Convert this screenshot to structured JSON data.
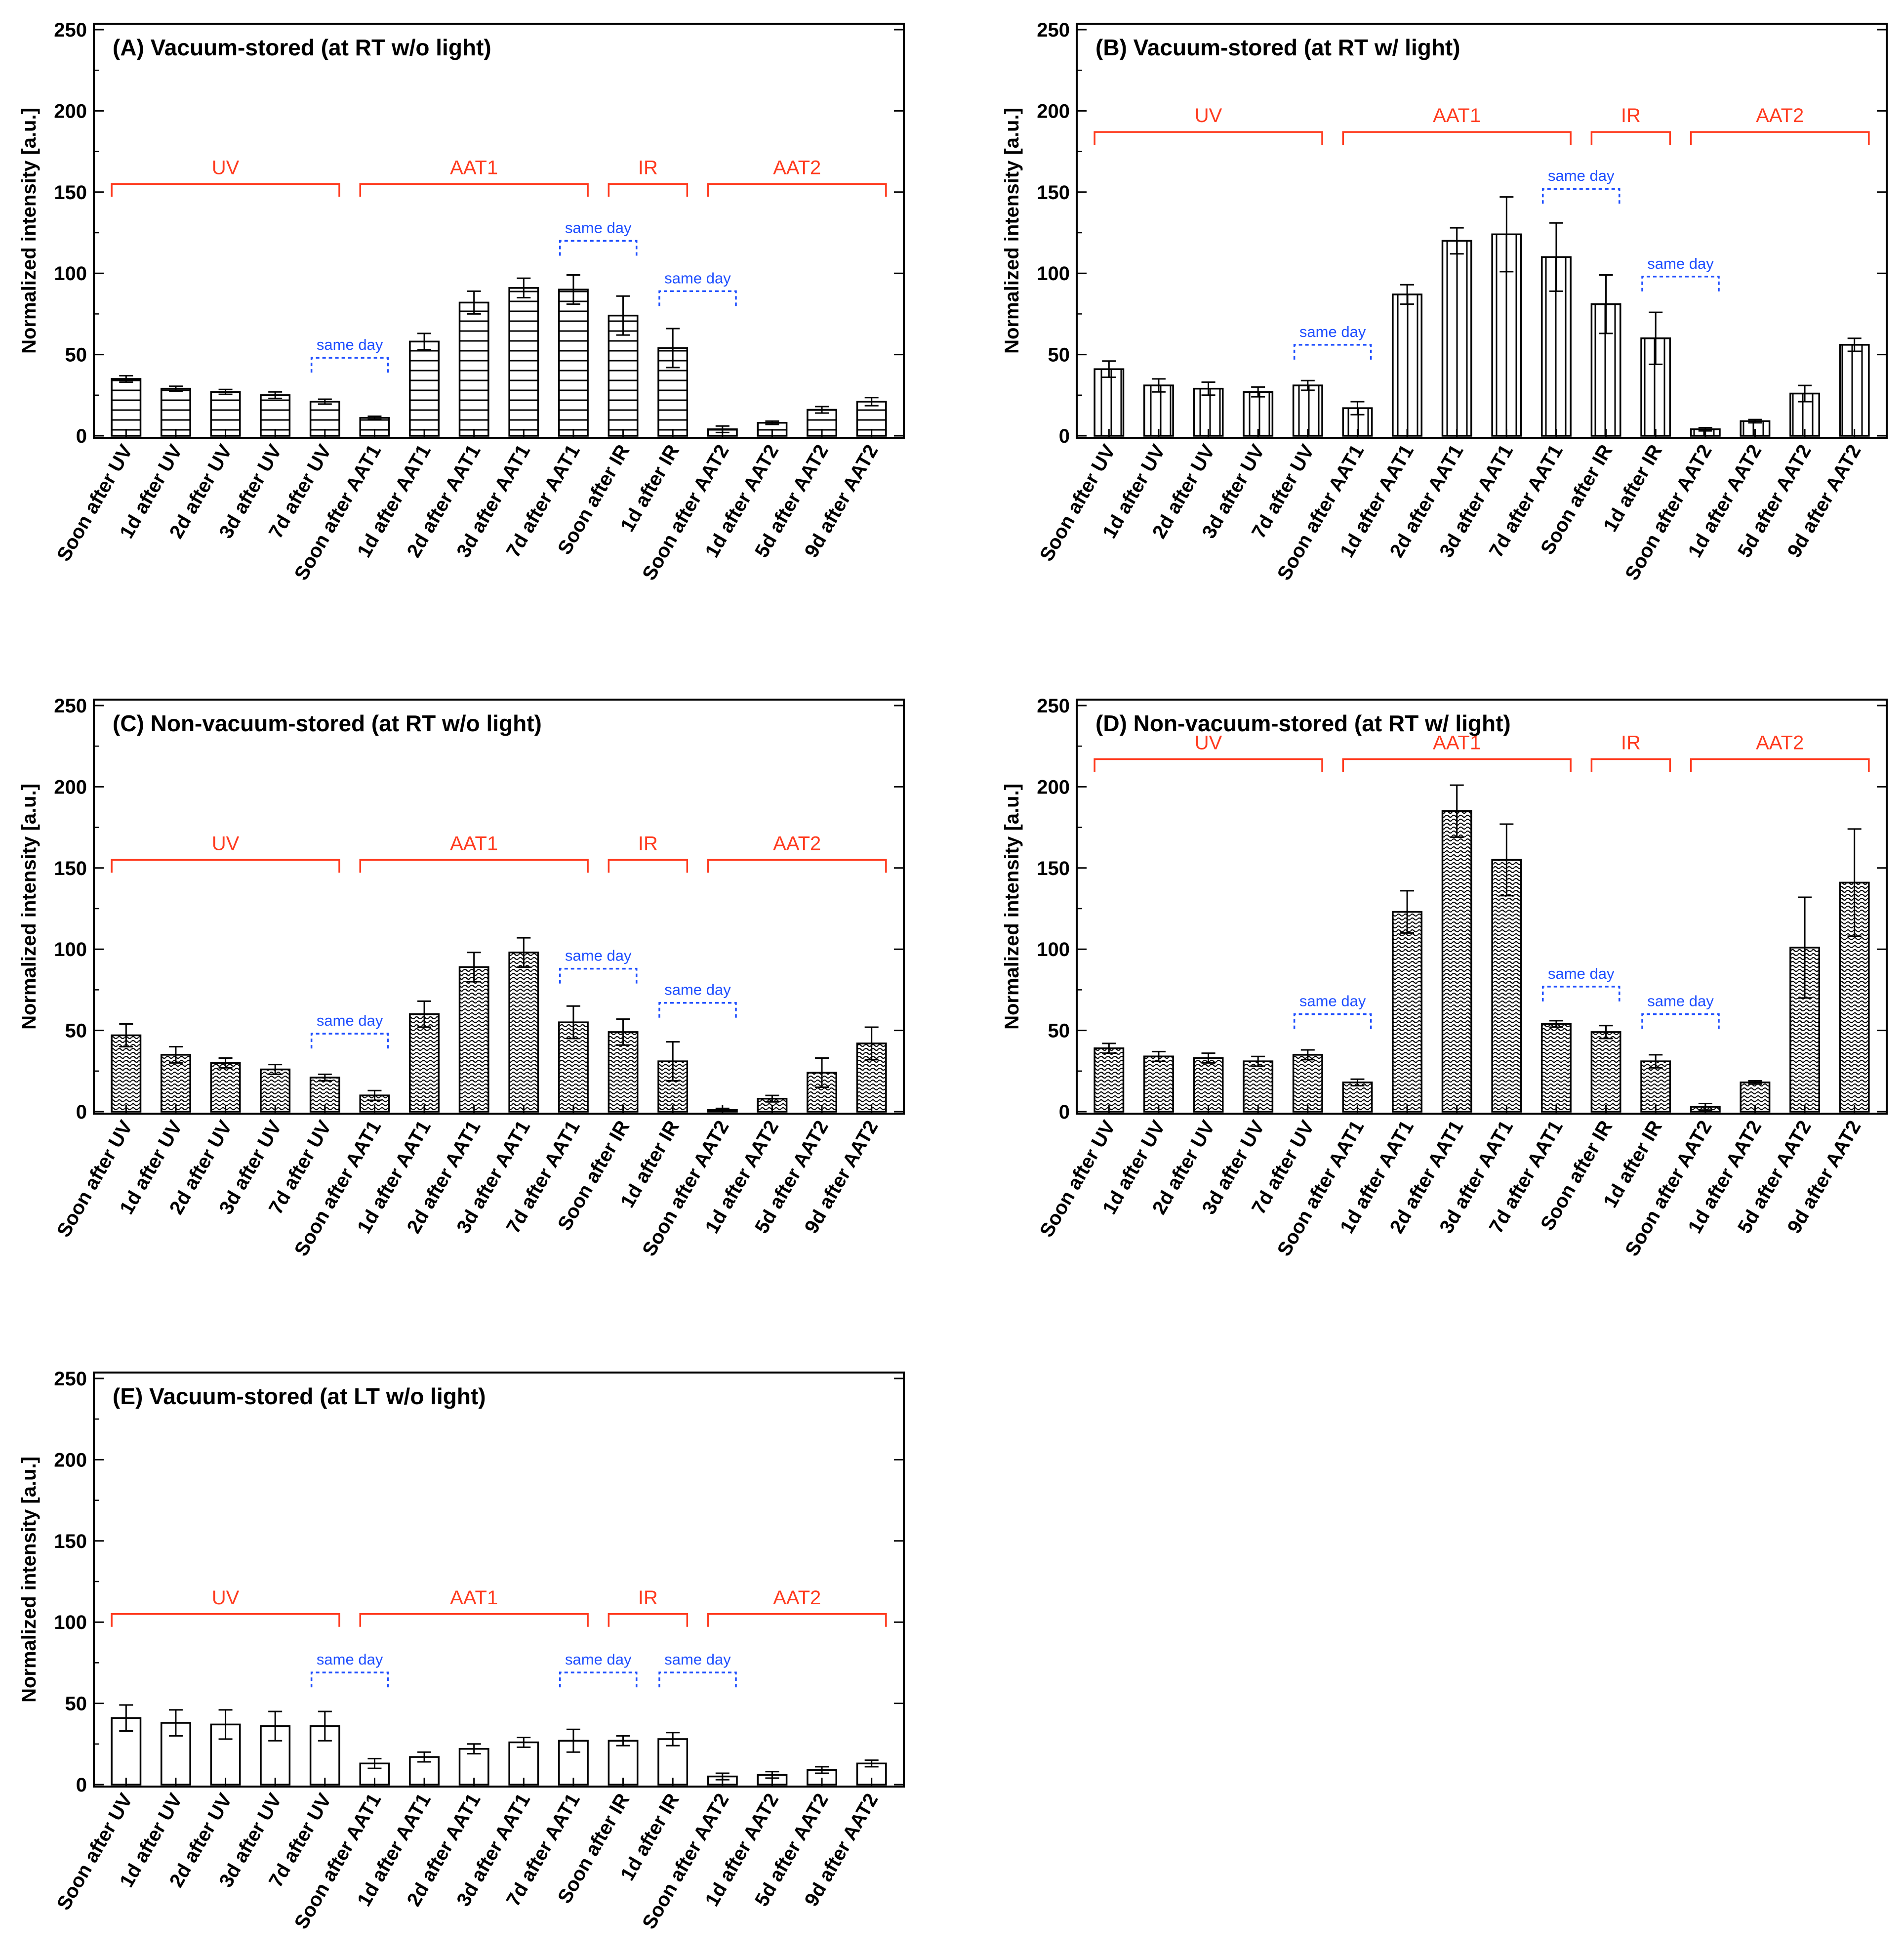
{
  "colors": {
    "group": "#ff3b1f",
    "same_day": "#1f4fff",
    "axis": "#000000",
    "bar_fill": "#ffffff"
  },
  "chart_data": [
    {
      "type": "bar",
      "title": "(A) Vacuum-stored (at RT w/o light)",
      "ylabel": "Normalized intensity [a.u.]",
      "ylim": [
        0,
        250
      ],
      "yticks": [
        0,
        50,
        100,
        150,
        200,
        250
      ],
      "pattern": "horizontal",
      "categories": [
        "Soon  after UV",
        "1d  after UV",
        "2d  after UV",
        "3d  after UV",
        "7d  after UV",
        "Soon after AAT1",
        "1d after AAT1",
        "2d after AAT1",
        "3d after AAT1",
        "7d after AAT1",
        "Soon after IR",
        "1d after IR",
        "Soon after AAT2",
        "1d after AAT2",
        "5d after AAT2",
        "9d after AAT2"
      ],
      "values": [
        35,
        29,
        27,
        25,
        21,
        11,
        58,
        82,
        91,
        90,
        74,
        54,
        4,
        8,
        16,
        21
      ],
      "errors": [
        2,
        1.5,
        1.5,
        2,
        1.5,
        1,
        5,
        7,
        6,
        9,
        12,
        12,
        2,
        1,
        2,
        2.5
      ],
      "groups": [
        {
          "label": "UV",
          "start": 0,
          "end": 4,
          "level": 155
        },
        {
          "label": "AAT1",
          "start": 5,
          "end": 9,
          "level": 155
        },
        {
          "label": "IR",
          "start": 10,
          "end": 11,
          "level": 155
        },
        {
          "label": "AAT2",
          "start": 12,
          "end": 15,
          "level": 155
        }
      ],
      "same_day": [
        {
          "label": "same day",
          "start": 4,
          "end": 5,
          "level": 48
        },
        {
          "label": "same day",
          "start": 9,
          "end": 10,
          "level": 120
        },
        {
          "label": "same day",
          "start": 11,
          "end": 12,
          "level": 89
        }
      ]
    },
    {
      "type": "bar",
      "title": "(B) Vacuum-stored (at RT w/ light)",
      "ylabel": "Normalized intensity [a.u.]",
      "ylim": [
        0,
        250
      ],
      "yticks": [
        0,
        50,
        100,
        150,
        200,
        250
      ],
      "pattern": "vertical",
      "categories": [
        "Soon after UV",
        "1d after UV",
        "2d after UV",
        "3d after UV",
        "7d after UV",
        "Soon after AAT1",
        "1d after AAT1",
        "2d after AAT1",
        "3d after AAT1",
        "7d after AAT1",
        "Soon after IR",
        "1d after IR",
        "Soon after AAT2",
        "1d after AAT2",
        "5d after AAT2",
        "9d after AAT2"
      ],
      "values": [
        41,
        31,
        29,
        27,
        31,
        17,
        87,
        120,
        124,
        110,
        81,
        60,
        4,
        9,
        26,
        56
      ],
      "errors": [
        5,
        4,
        4,
        3,
        3,
        4,
        6,
        8,
        23,
        21,
        18,
        16,
        1,
        1,
        5,
        4
      ],
      "groups": [
        {
          "label": "UV",
          "start": 0,
          "end": 4,
          "level": 187
        },
        {
          "label": "AAT1",
          "start": 5,
          "end": 9,
          "level": 187
        },
        {
          "label": "IR",
          "start": 10,
          "end": 11,
          "level": 187
        },
        {
          "label": "AAT2",
          "start": 12,
          "end": 15,
          "level": 187
        }
      ],
      "same_day": [
        {
          "label": "same day",
          "start": 4,
          "end": 5,
          "level": 56
        },
        {
          "label": "same day",
          "start": 9,
          "end": 10,
          "level": 152
        },
        {
          "label": "same day",
          "start": 11,
          "end": 12,
          "level": 98
        }
      ]
    },
    {
      "type": "bar",
      "title": "(C) Non-vacuum-stored (at RT w/o light)",
      "ylabel": "Normalized intensity [a.u.]",
      "ylim": [
        0,
        250
      ],
      "yticks": [
        0,
        50,
        100,
        150,
        200,
        250
      ],
      "pattern": "wavy",
      "categories": [
        "Soon after UV",
        "1d after UV",
        "2d after UV",
        "3d after UV",
        "7d after UV",
        "Soon after AAT1",
        "1d after AAT1",
        "2d after AAT1",
        "3d after AAT1",
        "7d after AAT1",
        "Soon after IR",
        "1d after IR",
        "Soon after AAT2",
        "1d after AAT2",
        "5d after AAT2",
        "9d after AAT2"
      ],
      "values": [
        47,
        35,
        30,
        26,
        21,
        10,
        60,
        89,
        98,
        55,
        49,
        31,
        1,
        8,
        24,
        42
      ],
      "errors": [
        7,
        5,
        3,
        3,
        2,
        3,
        8,
        9,
        9,
        10,
        8,
        12,
        1,
        2,
        9,
        10
      ],
      "groups": [
        {
          "label": "UV",
          "start": 0,
          "end": 4,
          "level": 155
        },
        {
          "label": "AAT1",
          "start": 5,
          "end": 9,
          "level": 155
        },
        {
          "label": "IR",
          "start": 10,
          "end": 11,
          "level": 155
        },
        {
          "label": "AAT2",
          "start": 12,
          "end": 15,
          "level": 155
        }
      ],
      "same_day": [
        {
          "label": "same day",
          "start": 4,
          "end": 5,
          "level": 48
        },
        {
          "label": "same day",
          "start": 9,
          "end": 10,
          "level": 88
        },
        {
          "label": "same day",
          "start": 11,
          "end": 12,
          "level": 67
        }
      ]
    },
    {
      "type": "bar",
      "title": "(D) Non-vacuum-stored (at RT w/ light)",
      "ylabel": "Normalized intensity [a.u.]",
      "ylim": [
        0,
        250
      ],
      "yticks": [
        0,
        50,
        100,
        150,
        200,
        250
      ],
      "pattern": "wavy",
      "categories": [
        "Soon after UV",
        "1d after UV",
        "2d after UV",
        "3d after UV",
        "7d after UV",
        "Soon after AAT1",
        "1d after AAT1",
        "2d after AAT1",
        "3d after AAT1",
        "7d after AAT1",
        "Soon after IR",
        "1d after IR",
        "Soon after AAT2",
        "1d after AAT2",
        "5d after AAT2",
        "9d after AAT2"
      ],
      "values": [
        39,
        34,
        33,
        31,
        35,
        18,
        123,
        185,
        155,
        54,
        49,
        31,
        3,
        18,
        101,
        141
      ],
      "errors": [
        3,
        3,
        3,
        3,
        3,
        2,
        13,
        16,
        22,
        2,
        4,
        4,
        2,
        1,
        31,
        33
      ],
      "groups": [
        {
          "label": "UV",
          "start": 0,
          "end": 4,
          "level": 217
        },
        {
          "label": "AAT1",
          "start": 5,
          "end": 9,
          "level": 217
        },
        {
          "label": "IR",
          "start": 10,
          "end": 11,
          "level": 217
        },
        {
          "label": "AAT2",
          "start": 12,
          "end": 15,
          "level": 217
        }
      ],
      "same_day": [
        {
          "label": "same day",
          "start": 4,
          "end": 5,
          "level": 60
        },
        {
          "label": "same day",
          "start": 9,
          "end": 10,
          "level": 77
        },
        {
          "label": "same day",
          "start": 11,
          "end": 12,
          "level": 60
        }
      ]
    },
    {
      "type": "bar",
      "title": "(E) Vacuum-stored (at LT w/o light)",
      "ylabel": "Normalized intensity [a.u.]",
      "ylim": [
        0,
        250
      ],
      "yticks": [
        0,
        50,
        100,
        150,
        200,
        250
      ],
      "pattern": "none",
      "categories": [
        "Soon after UV",
        "1d after UV",
        "2d after UV",
        "3d after UV",
        "7d after UV",
        "Soon after AAT1",
        "1d after AAT1",
        "2d after AAT1",
        "3d after AAT1",
        "7d after AAT1",
        "Soon after IR",
        "1d after IR",
        "Soon after AAT2",
        "1d after AAT2",
        "5d after AAT2",
        "9d after AAT2"
      ],
      "values": [
        41,
        38,
        37,
        36,
        36,
        13,
        17,
        22,
        26,
        27,
        27,
        28,
        5,
        6,
        9,
        13
      ],
      "errors": [
        8,
        8,
        9,
        9,
        9,
        3,
        3,
        3,
        3,
        7,
        3,
        4,
        2,
        2,
        2,
        2
      ],
      "groups": [
        {
          "label": "UV",
          "start": 0,
          "end": 4,
          "level": 105
        },
        {
          "label": "AAT1",
          "start": 5,
          "end": 9,
          "level": 105
        },
        {
          "label": "IR",
          "start": 10,
          "end": 11,
          "level": 105
        },
        {
          "label": "AAT2",
          "start": 12,
          "end": 15,
          "level": 105
        }
      ],
      "same_day": [
        {
          "label": "same day",
          "start": 4,
          "end": 5,
          "level": 69
        },
        {
          "label": "same day",
          "start": 9,
          "end": 10,
          "level": 69
        },
        {
          "label": "same day",
          "start": 11,
          "end": 12,
          "level": 69
        }
      ]
    }
  ]
}
